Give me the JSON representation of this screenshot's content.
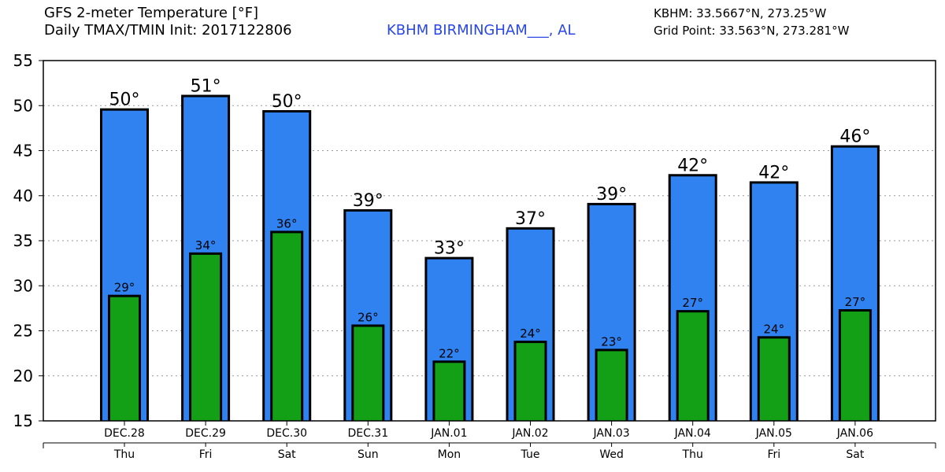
{
  "header": {
    "title_line1": "GFS 2-meter Temperature [°F]",
    "title_line2": "Daily TMAX/TMIN Init: 2017122806",
    "station": "KBHM BIRMINGHAM___, AL",
    "coord_line1": "KBHM: 33.5667°N, 273.25°W",
    "coord_line2": "Grid Point: 33.563°N, 273.281°W"
  },
  "colors": {
    "tmax": "#2f82ef",
    "tmin": "#13a016",
    "station_text": "#2a47e6"
  },
  "chart_data": {
    "type": "bar",
    "title": "GFS 2-meter Temperature [°F]",
    "subtitle": "Daily TMAX/TMIN Init: 2017122806",
    "categories": [
      "DEC.28",
      "DEC.29",
      "DEC.30",
      "DEC.31",
      "JAN.01",
      "JAN.02",
      "JAN.03",
      "JAN.04",
      "JAN.05",
      "JAN.06"
    ],
    "weekdays": [
      "Thu",
      "Fri",
      "Sat",
      "Sun",
      "Mon",
      "Tue",
      "Wed",
      "Thu",
      "Fri",
      "Sat"
    ],
    "series": [
      {
        "name": "TMAX",
        "values": [
          49.7,
          51.2,
          49.5,
          38.5,
          33.2,
          36.5,
          39.2,
          42.4,
          41.6,
          45.6
        ],
        "labels": [
          "50°",
          "51°",
          "50°",
          "39°",
          "33°",
          "37°",
          "39°",
          "42°",
          "42°",
          "46°"
        ]
      },
      {
        "name": "TMIN",
        "values": [
          29.0,
          33.7,
          36.1,
          25.7,
          21.7,
          23.9,
          23.0,
          27.3,
          24.4,
          27.4
        ],
        "labels": [
          "29°",
          "34°",
          "36°",
          "26°",
          "22°",
          "24°",
          "23°",
          "27°",
          "24°",
          "27°"
        ]
      }
    ],
    "yticks": [
      "15",
      "20",
      "25",
      "30",
      "35",
      "40",
      "45",
      "50",
      "55"
    ],
    "ylim": [
      15,
      55
    ],
    "grid": true,
    "xlabel": "",
    "ylabel": ""
  }
}
